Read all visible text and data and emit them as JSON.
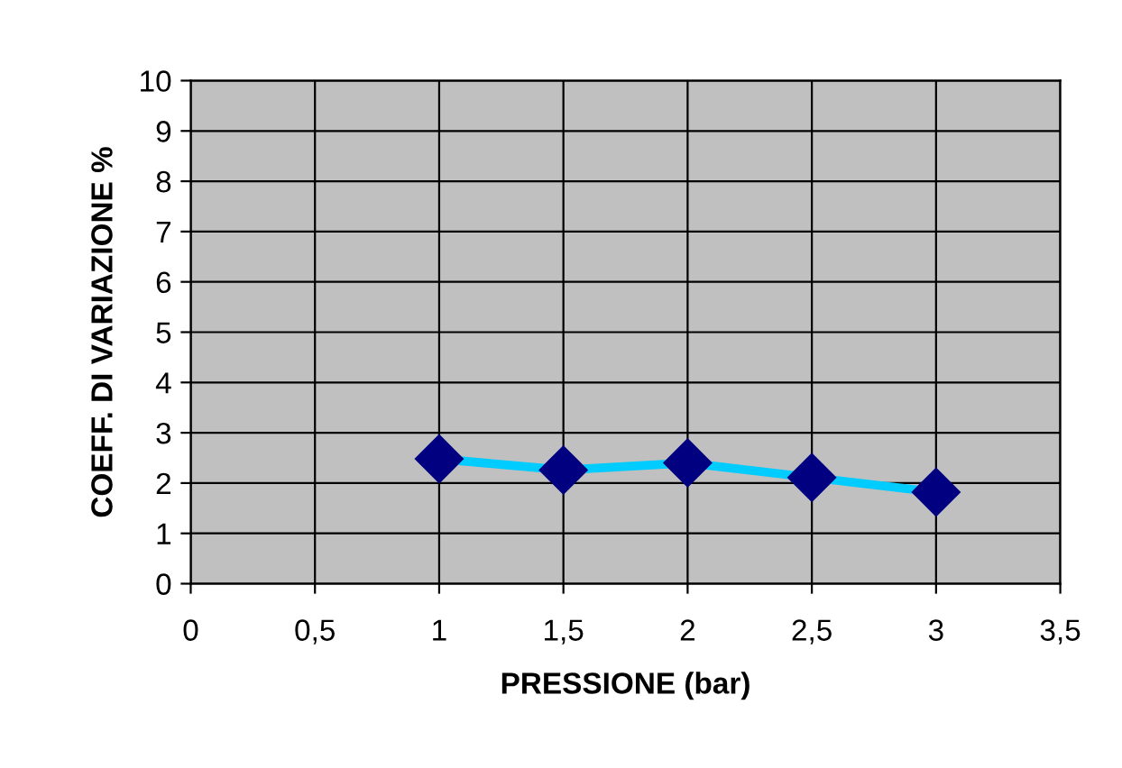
{
  "chart_data": {
    "type": "line",
    "xlabel": "PRESSIONE (bar)",
    "ylabel": "COEFF. DI VARIAZIONE %",
    "x": [
      1,
      1.5,
      2,
      2.5,
      3
    ],
    "series": [
      {
        "color": "#00ccff",
        "values": [
          2.48,
          2.26,
          2.4,
          2.11,
          1.82
        ]
      }
    ],
    "marker": "diamond",
    "line_style": "solid",
    "grid": true,
    "legend": false,
    "xlim": [
      0,
      3.5
    ],
    "xticks": [
      0,
      {
        "value": 0.5,
        "label": "0,5"
      },
      1,
      {
        "value": 1.5,
        "label": "1,5"
      },
      2,
      {
        "value": 2.5,
        "label": "2,5"
      },
      3,
      {
        "value": 3.5,
        "label": "3,5"
      }
    ],
    "ylim": [
      0,
      10
    ],
    "yticks": [
      0,
      1,
      2,
      3,
      4,
      5,
      6,
      7,
      8,
      9,
      10
    ]
  }
}
